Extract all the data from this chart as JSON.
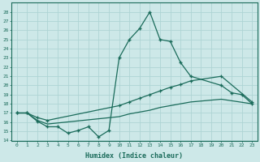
{
  "xlabel": "Humidex (Indice chaleur)",
  "bg_color": "#cde8e8",
  "grid_color": "#aed4d4",
  "line_color": "#1a6b5a",
  "xlim": [
    -0.5,
    23.5
  ],
  "ylim": [
    14,
    29
  ],
  "yticks": [
    14,
    15,
    16,
    17,
    18,
    19,
    20,
    21,
    22,
    23,
    24,
    25,
    26,
    27,
    28
  ],
  "xticks": [
    0,
    1,
    2,
    3,
    4,
    5,
    6,
    7,
    8,
    9,
    10,
    11,
    12,
    13,
    14,
    15,
    16,
    17,
    18,
    19,
    20,
    21,
    22,
    23
  ],
  "line1_x": [
    0,
    1,
    2,
    3,
    4,
    5,
    6,
    7,
    8,
    9,
    10,
    11,
    12,
    13,
    14,
    15,
    16,
    17,
    20,
    21,
    22,
    23
  ],
  "line1_y": [
    17.0,
    17.0,
    16.1,
    15.5,
    15.5,
    14.8,
    15.1,
    15.5,
    14.4,
    15.1,
    23.0,
    25.0,
    26.2,
    28.0,
    25.0,
    24.8,
    22.5,
    21.0,
    20.0,
    19.2,
    19.0,
    18.0
  ],
  "line2_x": [
    0,
    1,
    2,
    3,
    10,
    11,
    12,
    13,
    14,
    15,
    16,
    17,
    20,
    23
  ],
  "line2_y": [
    17.0,
    17.0,
    16.5,
    16.2,
    17.8,
    18.2,
    18.6,
    19.0,
    19.4,
    19.8,
    20.1,
    20.5,
    21.0,
    18.2
  ],
  "line3_x": [
    0,
    1,
    2,
    3,
    10,
    11,
    12,
    13,
    14,
    15,
    16,
    17,
    20,
    23
  ],
  "line3_y": [
    17.0,
    17.0,
    16.2,
    15.8,
    16.6,
    16.9,
    17.1,
    17.3,
    17.6,
    17.8,
    18.0,
    18.2,
    18.5,
    18.0
  ]
}
